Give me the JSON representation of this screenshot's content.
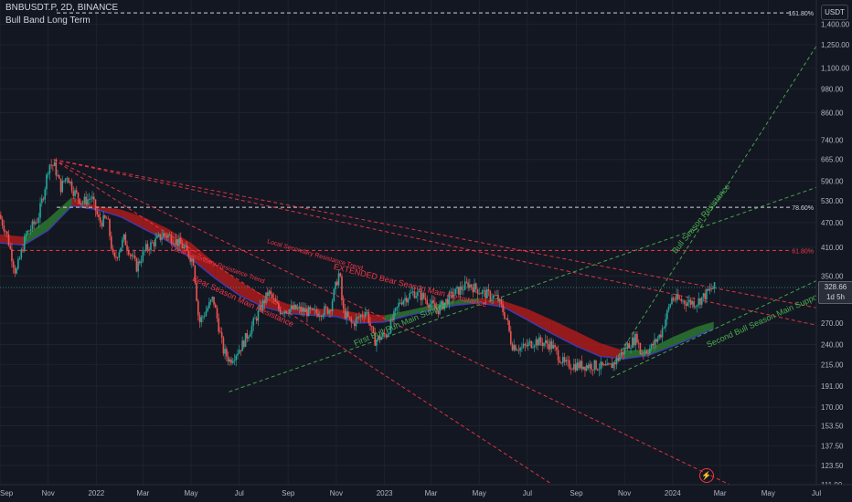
{
  "header": {
    "symbol_line": "BNBUSDT.P, 2D, BINANCE",
    "indicator": "Bull Band Long Term",
    "currency": "USDT"
  },
  "last_price": {
    "value": "328.66",
    "countdown": "1d 5h"
  },
  "colors": {
    "background": "#131722",
    "up_candle": "#26a69a",
    "down_candle": "#ef5350",
    "resistance": "#f23645",
    "support": "#4caf50",
    "band_bull": "#2e7d32",
    "band_bear": "#b71c1c",
    "band_mid": "#3b3bb5"
  },
  "chart_data": {
    "type": "candlestick",
    "title": "",
    "y_scale": "log",
    "ylim": [
      111,
      1600
    ],
    "xlim": [
      "2021-09-01",
      "2024-07-01"
    ],
    "y_ticks": [
      "1,400.00",
      "1,250.00",
      "1,100.00",
      "980.00",
      "860.00",
      "740.00",
      "665.00",
      "590.00",
      "530.00",
      "470.00",
      "410.00",
      "350.00",
      "270.00",
      "240.00",
      "215.00",
      "191.00",
      "170.00",
      "153.50",
      "137.50",
      "123.50",
      "111.00"
    ],
    "x_ticks": [
      {
        "label": "Sep",
        "date": "2021-09-01"
      },
      {
        "label": "Nov",
        "date": "2021-11-01"
      },
      {
        "label": "2022",
        "date": "2022-01-01"
      },
      {
        "label": "Mar",
        "date": "2022-03-01"
      },
      {
        "label": "May",
        "date": "2022-05-01"
      },
      {
        "label": "Jul",
        "date": "2022-07-01"
      },
      {
        "label": "Sep",
        "date": "2022-09-01"
      },
      {
        "label": "Nov",
        "date": "2022-11-01"
      },
      {
        "label": "2023",
        "date": "2023-01-01"
      },
      {
        "label": "Mar",
        "date": "2023-03-01"
      },
      {
        "label": "May",
        "date": "2023-05-01"
      },
      {
        "label": "Jul",
        "date": "2023-07-01"
      },
      {
        "label": "Sep",
        "date": "2023-09-01"
      },
      {
        "label": "Nov",
        "date": "2023-11-01"
      },
      {
        "label": "2024",
        "date": "2024-01-01"
      },
      {
        "label": "Mar",
        "date": "2024-03-01"
      },
      {
        "label": "May",
        "date": "2024-05-01"
      },
      {
        "label": "Jul",
        "date": "2024-07-01"
      }
    ],
    "price_path": [
      [
        "2021-09-01",
        490
      ],
      [
        "2021-09-10",
        445
      ],
      [
        "2021-09-22",
        355
      ],
      [
        "2021-10-05",
        440
      ],
      [
        "2021-10-20",
        480
      ],
      [
        "2021-10-28",
        560
      ],
      [
        "2021-11-03",
        650
      ],
      [
        "2021-11-10",
        640
      ],
      [
        "2021-11-18",
        570
      ],
      [
        "2021-11-26",
        610
      ],
      [
        "2021-12-04",
        560
      ],
      [
        "2021-12-15",
        525
      ],
      [
        "2021-12-27",
        540
      ],
      [
        "2022-01-06",
        470
      ],
      [
        "2022-01-16",
        480
      ],
      [
        "2022-01-24",
        378
      ],
      [
        "2022-02-06",
        430
      ],
      [
        "2022-02-22",
        368
      ],
      [
        "2022-03-05",
        405
      ],
      [
        "2022-03-28",
        440
      ],
      [
        "2022-04-05",
        435
      ],
      [
        "2022-04-20",
        415
      ],
      [
        "2022-05-05",
        380
      ],
      [
        "2022-05-12",
        270
      ],
      [
        "2022-05-30",
        310
      ],
      [
        "2022-06-12",
        232
      ],
      [
        "2022-06-20",
        220
      ],
      [
        "2022-07-05",
        238
      ],
      [
        "2022-07-20",
        270
      ],
      [
        "2022-08-08",
        320
      ],
      [
        "2022-08-22",
        290
      ],
      [
        "2022-09-12",
        292
      ],
      [
        "2022-10-05",
        285
      ],
      [
        "2022-10-25",
        292
      ],
      [
        "2022-11-06",
        360
      ],
      [
        "2022-11-10",
        290
      ],
      [
        "2022-11-22",
        268
      ],
      [
        "2022-12-10",
        290
      ],
      [
        "2022-12-20",
        245
      ],
      [
        "2023-01-05",
        255
      ],
      [
        "2023-01-22",
        305
      ],
      [
        "2023-02-08",
        320
      ],
      [
        "2023-02-20",
        312
      ],
      [
        "2023-03-10",
        290
      ],
      [
        "2023-03-28",
        315
      ],
      [
        "2023-04-18",
        335
      ],
      [
        "2023-05-08",
        318
      ],
      [
        "2023-05-25",
        310
      ],
      [
        "2023-06-06",
        275
      ],
      [
        "2023-06-12",
        240
      ],
      [
        "2023-06-25",
        235
      ],
      [
        "2023-07-12",
        245
      ],
      [
        "2023-08-01",
        240
      ],
      [
        "2023-08-18",
        215
      ],
      [
        "2023-09-05",
        214
      ],
      [
        "2023-09-25",
        214
      ],
      [
        "2023-10-12",
        210
      ],
      [
        "2023-10-25",
        222
      ],
      [
        "2023-11-05",
        238
      ],
      [
        "2023-11-18",
        250
      ],
      [
        "2023-11-22",
        230
      ],
      [
        "2023-12-05",
        235
      ],
      [
        "2023-12-18",
        255
      ],
      [
        "2024-01-01",
        310
      ],
      [
        "2024-01-15",
        305
      ],
      [
        "2024-02-01",
        302
      ],
      [
        "2024-02-12",
        315
      ],
      [
        "2024-02-22",
        328.66
      ]
    ],
    "band": [
      [
        "2021-09-01",
        420,
        440
      ],
      [
        "2021-10-01",
        415,
        435
      ],
      [
        "2021-11-01",
        450,
        480
      ],
      [
        "2021-12-01",
        515,
        540
      ],
      [
        "2022-01-01",
        505,
        515
      ],
      [
        "2022-02-01",
        485,
        505
      ],
      [
        "2022-03-01",
        455,
        485
      ],
      [
        "2022-04-01",
        425,
        455
      ],
      [
        "2022-05-01",
        385,
        420
      ],
      [
        "2022-06-01",
        345,
        375
      ],
      [
        "2022-07-01",
        315,
        340
      ],
      [
        "2022-08-01",
        295,
        315
      ],
      [
        "2022-09-01",
        285,
        300
      ],
      [
        "2022-10-01",
        282,
        292
      ],
      [
        "2022-11-01",
        280,
        292
      ],
      [
        "2022-12-01",
        270,
        285
      ],
      [
        "2023-01-01",
        272,
        282
      ],
      [
        "2023-02-01",
        282,
        290
      ],
      [
        "2023-03-01",
        290,
        298
      ],
      [
        "2023-04-01",
        298,
        306
      ],
      [
        "2023-05-01",
        302,
        310
      ],
      [
        "2023-06-01",
        295,
        305
      ],
      [
        "2023-07-01",
        275,
        292
      ],
      [
        "2023-08-01",
        255,
        275
      ],
      [
        "2023-09-01",
        238,
        258
      ],
      [
        "2023-10-01",
        225,
        242
      ],
      [
        "2023-11-01",
        222,
        232
      ],
      [
        "2023-12-01",
        226,
        234
      ],
      [
        "2024-01-01",
        238,
        250
      ],
      [
        "2024-02-01",
        252,
        265
      ],
      [
        "2024-02-22",
        262,
        272
      ]
    ],
    "horizontal_levels": [
      {
        "price": 1490,
        "label": "161.80%",
        "color": "#d1d4dc"
      },
      {
        "price": 511,
        "label": "78.60%",
        "color": "#d1d4dc"
      },
      {
        "price": 403,
        "label": "61.80%",
        "color": "#f23645"
      }
    ],
    "trendlines": [
      {
        "name": "EXTENDED Bear Season Main Resistance",
        "color": "#f23645",
        "p1": [
          "2021-11-08",
          665
        ],
        "p2": [
          "2024-02-22",
          328
        ]
      },
      {
        "name": "Local Secondary Resistance Trend",
        "color": "#f23645",
        "p1": [
          "2021-11-08",
          665
        ],
        "p2": [
          "2023-11-20",
          330
        ]
      },
      {
        "name": "Local Secondary Resistance Trend",
        "color": "#f23645",
        "p1": [
          "2021-11-08",
          665
        ],
        "p2": [
          "2022-11-08",
          310
        ]
      },
      {
        "name": "Bear Season Main Resistance",
        "color": "#f23645",
        "p1": [
          "2021-11-08",
          665
        ],
        "p2": [
          "2023-01-15",
          195
        ]
      },
      {
        "name": "First Bull Run Main Support",
        "color": "#4caf50",
        "p1": [
          "2022-06-18",
          185
        ],
        "p2": [
          "2023-09-01",
          360
        ]
      },
      {
        "name": "Bull Season Resistance",
        "color": "#4caf50",
        "p1": [
          "2023-10-15",
          212
        ],
        "p2": [
          "2024-05-01",
          820
        ]
      },
      {
        "name": "Second Bull Season Main Support",
        "color": "#4caf50",
        "p1": [
          "2023-10-15",
          200
        ],
        "p2": [
          "2024-06-15",
          330
        ]
      }
    ],
    "annotations": [
      {
        "text": "EXTENDED Bear Season Main Resistance",
        "color": "#f23645",
        "at": [
          "2022-10-28",
          364
        ]
      },
      {
        "text": "Local Secondary Resistance Trend",
        "color": "#f23645",
        "at": [
          "2022-08-05",
          420
        ]
      },
      {
        "text": "Local Secondary Resistance Trend",
        "color": "#f23645",
        "at": [
          "2022-04-05",
          405
        ]
      },
      {
        "text": "Bear Season Main Resistance",
        "color": "#f23645",
        "at": [
          "2022-05-02",
          342
        ]
      },
      {
        "text": "First Bull Run Main Support",
        "color": "#4caf50",
        "at": [
          "2022-11-25",
          238
        ]
      },
      {
        "text": "Bull Season Resistance",
        "color": "#4caf50",
        "at": [
          "2024-01-05",
          395
        ]
      },
      {
        "text": "Second Bull Season Main Support",
        "color": "#4caf50",
        "at": [
          "2024-02-15",
          236
        ]
      }
    ]
  }
}
